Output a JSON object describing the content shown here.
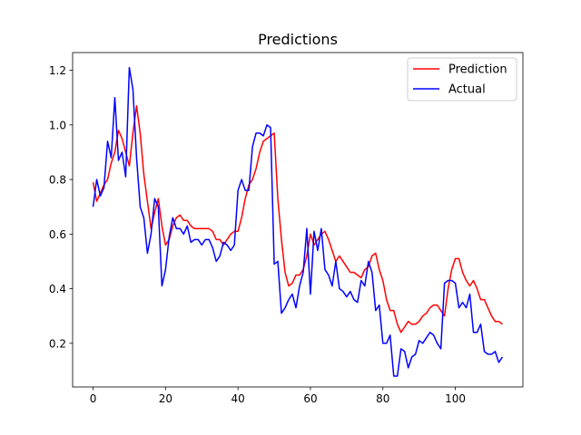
{
  "chart_data": {
    "type": "line",
    "title": "Predictions",
    "xlabel": "",
    "ylabel": "",
    "xlim": [
      -5.65,
      118.65
    ],
    "ylim": [
      0.04,
      1.265
    ],
    "xticks": [
      0,
      20,
      40,
      60,
      80,
      100
    ],
    "yticks": [
      0.2,
      0.4,
      0.6,
      0.8,
      1.0,
      1.2
    ],
    "ytick_labels": [
      "0.2",
      "0.4",
      "0.6",
      "0.8",
      "1.0",
      "1.2"
    ],
    "grid": false,
    "legend": "upper-right",
    "series": [
      {
        "name": "Prediction",
        "color": "#ff0000",
        "values": [
          0.79,
          0.72,
          0.75,
          0.78,
          0.8,
          0.86,
          0.9,
          0.98,
          0.95,
          0.9,
          0.85,
          0.97,
          1.07,
          0.97,
          0.82,
          0.72,
          0.62,
          0.68,
          0.73,
          0.63,
          0.56,
          0.58,
          0.63,
          0.66,
          0.67,
          0.65,
          0.65,
          0.63,
          0.62,
          0.62,
          0.62,
          0.62,
          0.62,
          0.61,
          0.58,
          0.58,
          0.56,
          0.58,
          0.6,
          0.61,
          0.61,
          0.66,
          0.73,
          0.78,
          0.8,
          0.84,
          0.9,
          0.94,
          0.95,
          0.96,
          0.97,
          0.73,
          0.58,
          0.46,
          0.41,
          0.42,
          0.45,
          0.45,
          0.47,
          0.52,
          0.6,
          0.56,
          0.58,
          0.6,
          0.61,
          0.58,
          0.54,
          0.5,
          0.52,
          0.5,
          0.48,
          0.46,
          0.46,
          0.45,
          0.44,
          0.47,
          0.48,
          0.52,
          0.53,
          0.47,
          0.43,
          0.36,
          0.32,
          0.32,
          0.27,
          0.24,
          0.26,
          0.28,
          0.27,
          0.27,
          0.28,
          0.3,
          0.31,
          0.33,
          0.34,
          0.34,
          0.32,
          0.3,
          0.4,
          0.47,
          0.51,
          0.51,
          0.46,
          0.43,
          0.41,
          0.43,
          0.4,
          0.36,
          0.36,
          0.33,
          0.3,
          0.28,
          0.28,
          0.27
        ]
      },
      {
        "name": "Actual",
        "color": "#0000ff",
        "values": [
          0.7,
          0.8,
          0.74,
          0.77,
          0.94,
          0.88,
          1.1,
          0.87,
          0.9,
          0.81,
          1.21,
          1.13,
          0.88,
          0.7,
          0.66,
          0.53,
          0.6,
          0.73,
          0.7,
          0.41,
          0.47,
          0.59,
          0.66,
          0.62,
          0.62,
          0.6,
          0.63,
          0.57,
          0.58,
          0.58,
          0.56,
          0.58,
          0.58,
          0.55,
          0.5,
          0.52,
          0.57,
          0.56,
          0.54,
          0.56,
          0.76,
          0.8,
          0.76,
          0.76,
          0.92,
          0.97,
          0.97,
          0.96,
          1.0,
          0.99,
          0.49,
          0.5,
          0.31,
          0.33,
          0.36,
          0.38,
          0.33,
          0.41,
          0.46,
          0.62,
          0.38,
          0.61,
          0.54,
          0.62,
          0.47,
          0.45,
          0.41,
          0.5,
          0.4,
          0.39,
          0.37,
          0.39,
          0.36,
          0.35,
          0.43,
          0.41,
          0.5,
          0.46,
          0.32,
          0.34,
          0.2,
          0.2,
          0.23,
          0.08,
          0.08,
          0.18,
          0.17,
          0.11,
          0.15,
          0.16,
          0.21,
          0.2,
          0.22,
          0.24,
          0.23,
          0.2,
          0.18,
          0.42,
          0.43,
          0.43,
          0.42,
          0.33,
          0.35,
          0.33,
          0.38,
          0.24,
          0.24,
          0.27,
          0.17,
          0.16,
          0.16,
          0.17,
          0.13,
          0.15
        ]
      }
    ]
  }
}
